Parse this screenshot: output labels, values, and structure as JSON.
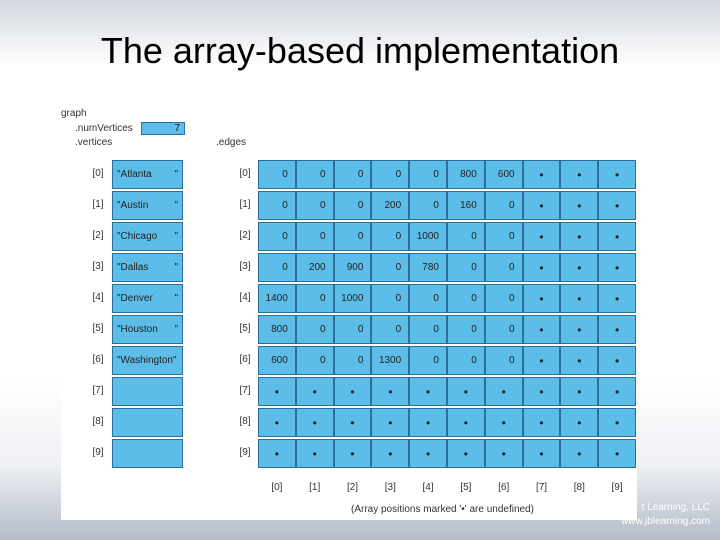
{
  "slide": {
    "title": "The array-based implementation"
  },
  "figure": {
    "graph_label": "graph",
    "num_vertices_label": ".numVertices",
    "num_vertices_value": "7",
    "vertices_label": ".vertices",
    "edges_label": ".edges",
    "footnote": "(Array positions marked '•' are undefined)",
    "undefined_marker": "•",
    "vertex_indices": [
      "[0]",
      "[1]",
      "[2]",
      "[3]",
      "[4]",
      "[5]",
      "[6]",
      "[7]",
      "[8]",
      "[9]"
    ],
    "column_indices": [
      "[0]",
      "[1]",
      "[2]",
      "[3]",
      "[4]",
      "[5]",
      "[6]",
      "[7]",
      "[8]",
      "[9]"
    ],
    "vertices": [
      {
        "name": "\"Atlanta",
        "tail": "\""
      },
      {
        "name": "\"Austin",
        "tail": "\""
      },
      {
        "name": "\"Chicago",
        "tail": "\""
      },
      {
        "name": "\"Dallas",
        "tail": "\""
      },
      {
        "name": "\"Denver",
        "tail": "\""
      },
      {
        "name": "\"Houston",
        "tail": "\""
      },
      {
        "name": "\"Washington\"",
        "tail": ""
      },
      {
        "name": "",
        "tail": ""
      },
      {
        "name": "",
        "tail": ""
      },
      {
        "name": "",
        "tail": ""
      }
    ],
    "edges": [
      [
        "0",
        "0",
        "0",
        "0",
        "0",
        "800",
        "600",
        "•",
        "•",
        "•"
      ],
      [
        "0",
        "0",
        "0",
        "200",
        "0",
        "160",
        "0",
        "•",
        "•",
        "•"
      ],
      [
        "0",
        "0",
        "0",
        "0",
        "1000",
        "0",
        "0",
        "•",
        "•",
        "•"
      ],
      [
        "0",
        "200",
        "900",
        "0",
        "780",
        "0",
        "0",
        "•",
        "•",
        "•"
      ],
      [
        "1400",
        "0",
        "1000",
        "0",
        "0",
        "0",
        "0",
        "•",
        "•",
        "•"
      ],
      [
        "800",
        "0",
        "0",
        "0",
        "0",
        "0",
        "0",
        "•",
        "•",
        "•"
      ],
      [
        "600",
        "0",
        "0",
        "1300",
        "0",
        "0",
        "0",
        "•",
        "•",
        "•"
      ],
      [
        "•",
        "•",
        "•",
        "•",
        "•",
        "•",
        "•",
        "•",
        "•",
        "•"
      ],
      [
        "•",
        "•",
        "•",
        "•",
        "•",
        "•",
        "•",
        "•",
        "•",
        "•"
      ],
      [
        "•",
        "•",
        "•",
        "•",
        "•",
        "•",
        "•",
        "•",
        "•",
        "•"
      ]
    ]
  },
  "copyright": {
    "line1": "t Learning, LLC",
    "line2": "www.jblearning.com"
  }
}
